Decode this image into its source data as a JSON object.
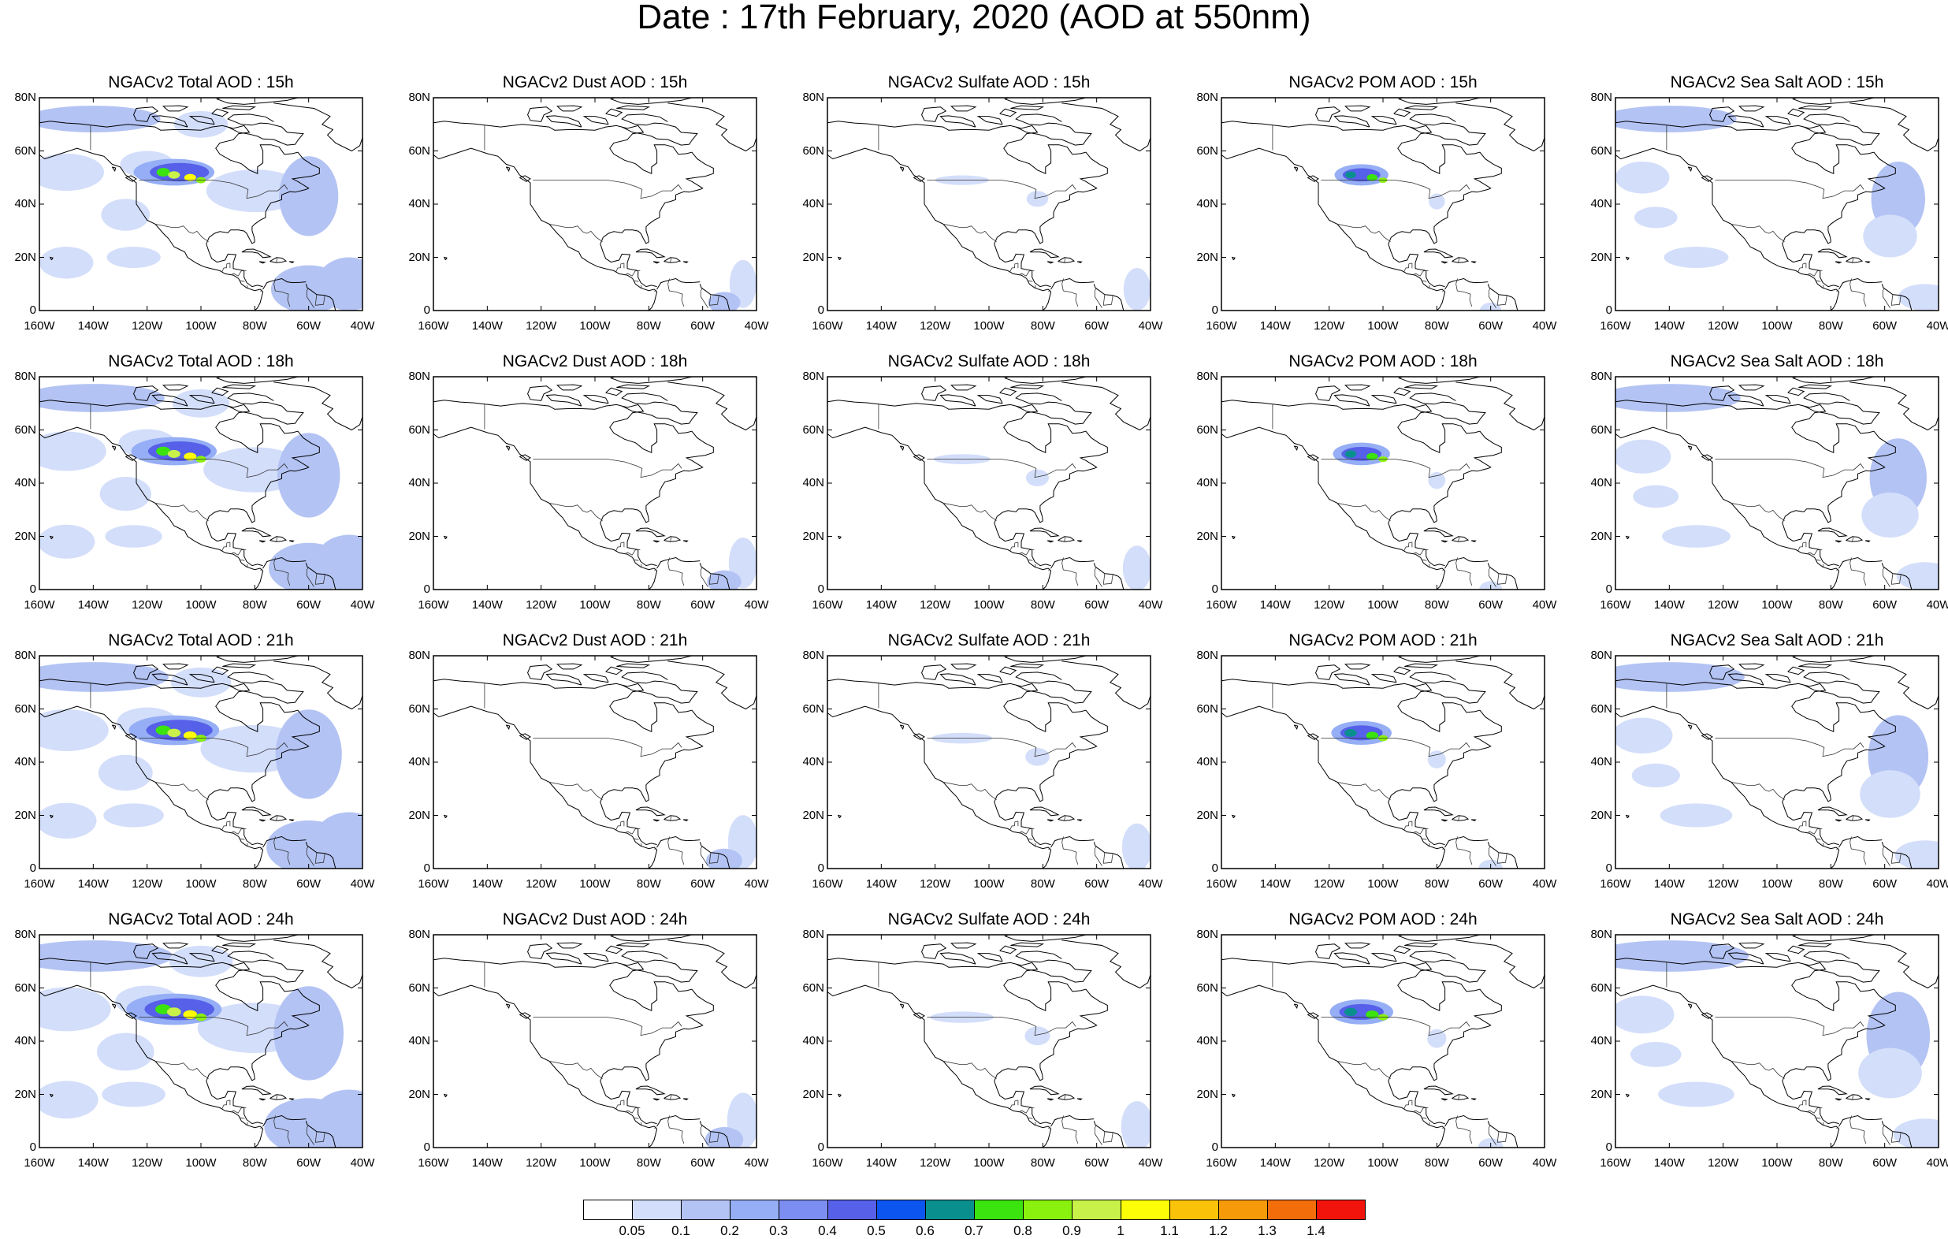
{
  "title": "Date : 17th February, 2020 (AOD at 550nm)",
  "panel_rows": [
    {
      "hour": "15h",
      "titles": [
        "NGACv2 Total AOD : 15h",
        "NGACv2 Dust AOD : 15h",
        "NGACv2 Sulfate AOD : 15h",
        "NGACv2 POM AOD : 15h",
        "NGACv2 Sea Salt AOD : 15h"
      ]
    },
    {
      "hour": "18h",
      "titles": [
        "NGACv2 Total AOD : 18h",
        "NGACv2 Dust AOD : 18h",
        "NGACv2 Sulfate AOD : 18h",
        "NGACv2 POM AOD : 18h",
        "NGACv2 Sea Salt AOD : 18h"
      ]
    },
    {
      "hour": "21h",
      "titles": [
        "NGACv2 Total AOD : 21h",
        "NGACv2 Dust AOD : 21h",
        "NGACv2 Sulfate AOD : 21h",
        "NGACv2 POM AOD : 21h",
        "NGACv2 Sea Salt AOD : 21h"
      ]
    },
    {
      "hour": "24h",
      "titles": [
        "NGACv2 Total AOD : 24h",
        "NGACv2 Dust AOD : 24h",
        "NGACv2 Sulfate AOD : 24h",
        "NGACv2 POM AOD : 24h",
        "NGACv2 Sea Salt  AOD : 24h"
      ]
    }
  ],
  "species": [
    "Total",
    "Dust",
    "Sulfate",
    "POM",
    "Sea Salt"
  ],
  "map_extent": {
    "lon_min": -160,
    "lon_max": -40,
    "lat_min": 0,
    "lat_max": 80
  },
  "lat_ticks": [
    {
      "value": 0,
      "label": "0"
    },
    {
      "value": 20,
      "label": "20N"
    },
    {
      "value": 40,
      "label": "40N"
    },
    {
      "value": 60,
      "label": "60N"
    },
    {
      "value": 80,
      "label": "80N"
    }
  ],
  "lon_ticks": [
    {
      "value": -160,
      "label": "160W"
    },
    {
      "value": -140,
      "label": "140W"
    },
    {
      "value": -120,
      "label": "120W"
    },
    {
      "value": -100,
      "label": "100W"
    },
    {
      "value": -80,
      "label": "80W"
    },
    {
      "value": -60,
      "label": "60W"
    },
    {
      "value": -40,
      "label": "40W"
    }
  ],
  "colorbar": {
    "labels": [
      "0.05",
      "0.1",
      "0.2",
      "0.3",
      "0.4",
      "0.5",
      "0.6",
      "0.7",
      "0.8",
      "0.9",
      "1",
      "1.1",
      "1.2",
      "1.3",
      "1.4"
    ],
    "colors": [
      "#ffffff",
      "#d3defa",
      "#b3c3f4",
      "#95aef5",
      "#7c8ef2",
      "#5660e8",
      "#0c55ef",
      "#0a8f8f",
      "#3be30f",
      "#8af00e",
      "#c8f24a",
      "#fdfd08",
      "#fbc20a",
      "#f79a0a",
      "#f36d0a",
      "#f0140c"
    ]
  },
  "colors": {
    "coastline": "#000000",
    "border": "#333333",
    "aod_low": "#d3defa",
    "aod_mid": "#b3c3f4",
    "aod_high": "#95aef5"
  }
}
